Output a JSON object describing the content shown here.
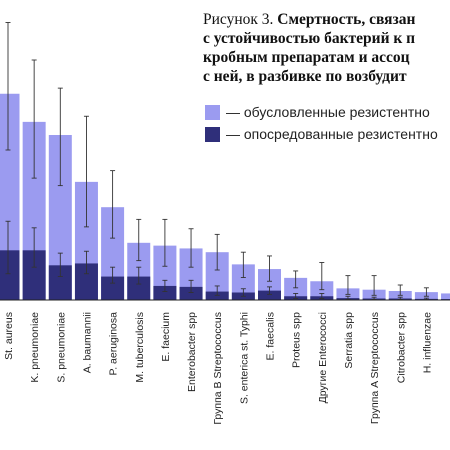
{
  "chart_data": {
    "type": "bar",
    "title_prefix": "Рисунок 3.",
    "title_lines": [
      "Смертность, связан",
      "с устойчивостью бактерий к п",
      "кробным препаратам и ассоц",
      "с ней, в разбивке по возбудит"
    ],
    "categories": [
      "St. aureus",
      "K. pneumoniae",
      "S. pneumoniae",
      "A. baumannii",
      "P. aeruginosa",
      "M. tuberculosis",
      "E. faecium",
      "Enterobacter spp",
      "Группа B Streptococcus",
      "S. enterica st. Typhi",
      "E. faecalis",
      "Proteus spp",
      "Другие Enterococci",
      "Serratia spp",
      "Группа A Streptococcus",
      "Citrobacter spp",
      "H. influenzae",
      ""
    ],
    "series": [
      {
        "name": "— обусловленные резистентно",
        "color": "#9b9bf0",
        "values": [
          1100,
          950,
          880,
          630,
          495,
          305,
          290,
          275,
          255,
          190,
          165,
          118,
          100,
          62,
          55,
          48,
          42,
          35
        ],
        "error_low": [
          800,
          650,
          610,
          390,
          330,
          210,
          180,
          175,
          160,
          120,
          100,
          65,
          55,
          30,
          25,
          25,
          20,
          15
        ],
        "error_high": [
          1480,
          1280,
          1130,
          980,
          690,
          430,
          430,
          380,
          350,
          255,
          235,
          155,
          200,
          130,
          130,
          80,
          65,
          50
        ]
      },
      {
        "name": "— опосредованные резистентно",
        "color": "#2f2f7a",
        "values": [
          265,
          265,
          185,
          195,
          125,
          125,
          75,
          70,
          45,
          40,
          50,
          20,
          20,
          10,
          8,
          8,
          6,
          5
        ],
        "error_low": [
          140,
          175,
          125,
          140,
          90,
          85,
          45,
          40,
          25,
          20,
          30,
          8,
          8,
          4,
          3,
          3,
          2,
          2
        ],
        "error_high": [
          420,
          385,
          250,
          260,
          175,
          175,
          105,
          105,
          75,
          60,
          70,
          35,
          35,
          20,
          15,
          15,
          10,
          10
        ]
      }
    ],
    "ylim": [
      0,
      1600
    ],
    "grid": false,
    "legend_position": "top-right"
  }
}
